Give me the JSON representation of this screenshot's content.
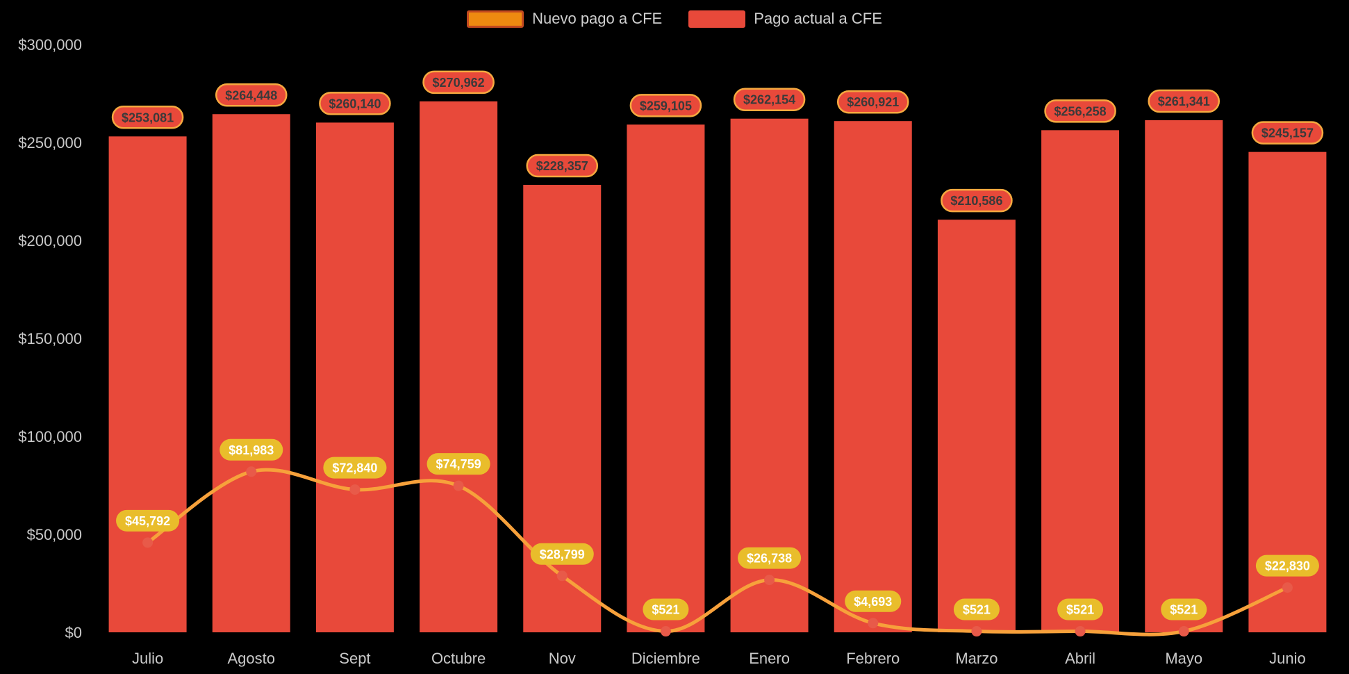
{
  "background": "#000000",
  "chart_data": {
    "type": "bar",
    "title": "",
    "categories": [
      "Julio",
      "Agosto",
      "Sept",
      "Octubre",
      "Nov",
      "Diciembre",
      "Enero",
      "Febrero",
      "Marzo",
      "Abril",
      "Mayo",
      "Junio"
    ],
    "series": [
      {
        "name": "Nuevo pago a CFE",
        "type": "line",
        "color": "#f7a13b",
        "point_color": "#e85a49",
        "label_bg": "#e9bd2b",
        "label_text": "#ffffff",
        "legend_swatch": {
          "fill": "#ee8a10",
          "stroke": "#c2491f"
        },
        "values": [
          45792,
          81983,
          72840,
          74759,
          28799,
          521,
          26738,
          4693,
          521,
          521,
          521,
          22830
        ],
        "labels": [
          "$45,792",
          "$81,983",
          "$72,840",
          "$74,759",
          "$28,799",
          "$521",
          "$26,738",
          "$4,693",
          "$521",
          "$521",
          "$521",
          "$22,830"
        ]
      },
      {
        "name": "Pago actual a CFE",
        "type": "bar",
        "color": "#e8493a",
        "label_bg": "#e8493a",
        "label_border": "#f5a93f",
        "label_text": "#3a3a3a",
        "legend_swatch": {
          "fill": "#e8493a",
          "stroke": "#e8493a"
        },
        "values": [
          253081,
          264448,
          260140,
          270962,
          228357,
          259105,
          262154,
          260921,
          210586,
          256258,
          261341,
          245157
        ],
        "labels": [
          "$253,081",
          "$264,448",
          "$260,140",
          "$270,962",
          "$228,357",
          "$259,105",
          "$262,154",
          "$260,921",
          "$210,586",
          "$256,258",
          "$261,341",
          "$245,157"
        ]
      }
    ],
    "xlabel": "",
    "ylabel": "",
    "ylim": [
      0,
      300000
    ],
    "yticks": [
      0,
      50000,
      100000,
      150000,
      200000,
      250000,
      300000
    ],
    "ytick_labels": [
      "$0",
      "$50,000",
      "$100,000",
      "$150,000",
      "$200,000",
      "$250,000",
      "$300,000"
    ],
    "grid": false,
    "legend_position": "top",
    "axis_text_color": "#c9c9c9",
    "legend_text_color": "#cfcfcf"
  }
}
